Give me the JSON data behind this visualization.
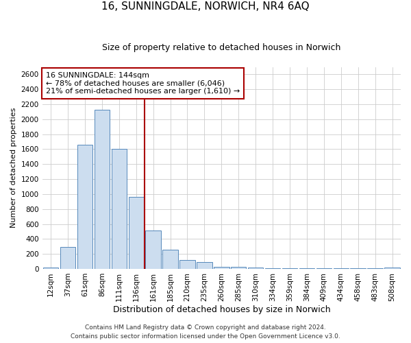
{
  "title": "16, SUNNINGDALE, NORWICH, NR4 6AQ",
  "subtitle": "Size of property relative to detached houses in Norwich",
  "xlabel": "Distribution of detached houses by size in Norwich",
  "ylabel": "Number of detached properties",
  "bar_labels": [
    "12sqm",
    "37sqm",
    "61sqm",
    "86sqm",
    "111sqm",
    "136sqm",
    "161sqm",
    "185sqm",
    "210sqm",
    "235sqm",
    "260sqm",
    "285sqm",
    "310sqm",
    "334sqm",
    "359sqm",
    "384sqm",
    "409sqm",
    "434sqm",
    "458sqm",
    "483sqm",
    "508sqm"
  ],
  "bar_values": [
    15,
    295,
    1660,
    2130,
    1600,
    960,
    510,
    255,
    120,
    95,
    30,
    30,
    15,
    5,
    5,
    5,
    5,
    5,
    5,
    5,
    20
  ],
  "bar_color": "#ccddef",
  "bar_edge_color": "#5588bb",
  "vline_x": 5.5,
  "vline_color": "#aa0000",
  "annotation_box_text": "16 SUNNINGDALE: 144sqm\n← 78% of detached houses are smaller (6,046)\n21% of semi-detached houses are larger (1,610) →",
  "annotation_box_color": "#aa0000",
  "ylim": [
    0,
    2700
  ],
  "yticks": [
    0,
    200,
    400,
    600,
    800,
    1000,
    1200,
    1400,
    1600,
    1800,
    2000,
    2200,
    2400,
    2600
  ],
  "footnote1": "Contains HM Land Registry data © Crown copyright and database right 2024.",
  "footnote2": "Contains public sector information licensed under the Open Government Licence v3.0.",
  "background_color": "#ffffff",
  "grid_color": "#cccccc",
  "title_fontsize": 11,
  "subtitle_fontsize": 9,
  "ylabel_fontsize": 8,
  "xlabel_fontsize": 9,
  "tick_fontsize": 7.5,
  "annot_fontsize": 8,
  "footnote_fontsize": 6.5
}
